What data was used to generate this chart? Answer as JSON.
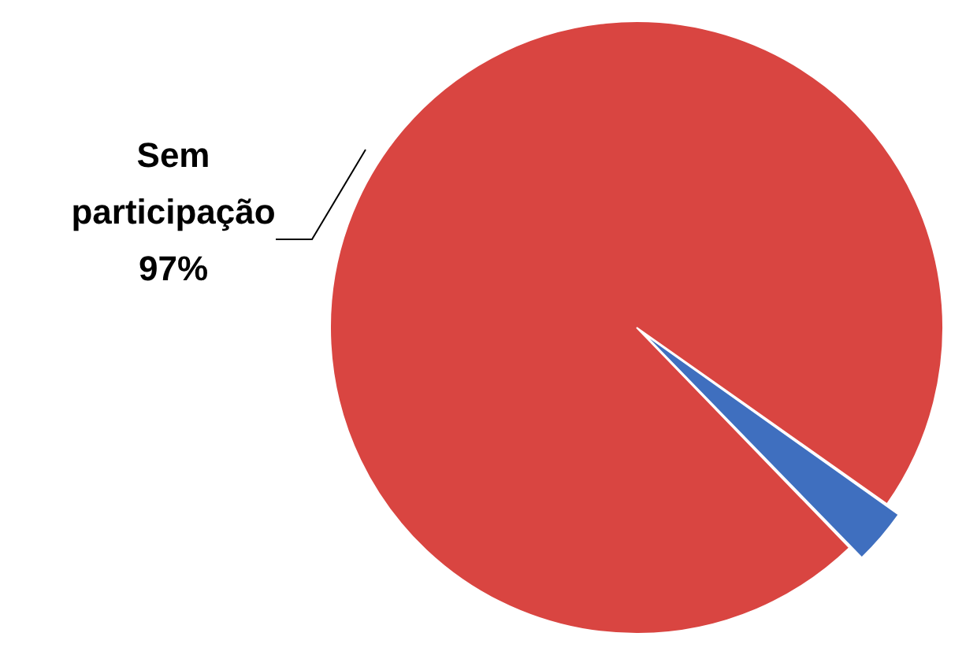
{
  "chart_data": {
    "type": "pie",
    "categories": [
      "Sem participação",
      null
    ],
    "values": [
      97,
      3
    ],
    "colors": [
      "#d94541",
      "#3f6fbf"
    ],
    "value_labels": [
      "97%",
      null
    ],
    "legend": false
  }
}
